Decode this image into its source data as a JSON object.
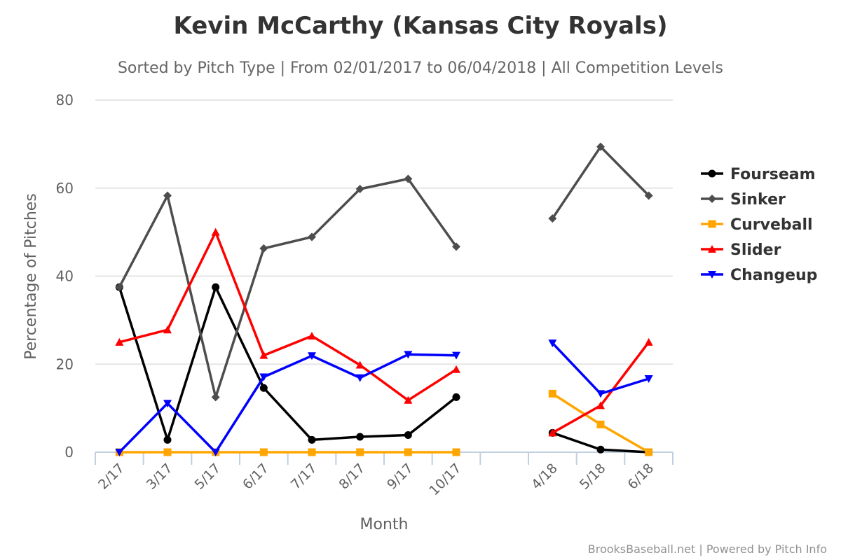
{
  "chart_data": {
    "type": "line",
    "title": "Kevin McCarthy (Kansas City Royals)",
    "subtitle": "Sorted by Pitch Type | From 02/01/2017 to 06/04/2018 | All Competition Levels",
    "xlabel": "Month",
    "ylabel": "Percentage of Pitches",
    "ylim": [
      0,
      80
    ],
    "yticks": [
      "0",
      "20",
      "40",
      "60",
      "80"
    ],
    "categories": [
      "2/17",
      "3/17",
      "5/17",
      "6/17",
      "7/17",
      "8/17",
      "9/17",
      "10/17",
      "",
      "4/18",
      "5/18",
      "6/18"
    ],
    "credits": "BrooksBaseball.net | Powered by Pitch Info",
    "legend_position": "right",
    "series": [
      {
        "name": "Fourseam",
        "color": "#000000",
        "marker": "circle",
        "values": [
          37.5,
          2.8,
          37.5,
          14.6,
          2.8,
          3.5,
          3.9,
          12.5,
          null,
          4.4,
          0.6,
          0.0
        ]
      },
      {
        "name": "Sinker",
        "color": "#4d4d4d",
        "marker": "diamond",
        "values": [
          37.5,
          58.3,
          12.5,
          46.3,
          48.9,
          59.8,
          62.1,
          46.7,
          null,
          53.1,
          69.4,
          58.3
        ]
      },
      {
        "name": "Curveball",
        "color": "#ffa500",
        "marker": "square",
        "values": [
          0,
          0,
          0,
          0,
          0,
          0,
          0,
          0,
          null,
          13.3,
          6.3,
          0.0
        ]
      },
      {
        "name": "Slider",
        "color": "#ff0000",
        "marker": "triangle-up",
        "values": [
          25.0,
          27.8,
          50.0,
          22.0,
          26.4,
          19.8,
          11.8,
          18.8,
          null,
          4.4,
          10.6,
          25.0
        ]
      },
      {
        "name": "Changeup",
        "color": "#0000ff",
        "marker": "triangle-down",
        "values": [
          0.0,
          11.1,
          0.0,
          17.1,
          21.9,
          16.9,
          22.2,
          22.0,
          null,
          24.8,
          13.3,
          16.7
        ]
      }
    ]
  }
}
